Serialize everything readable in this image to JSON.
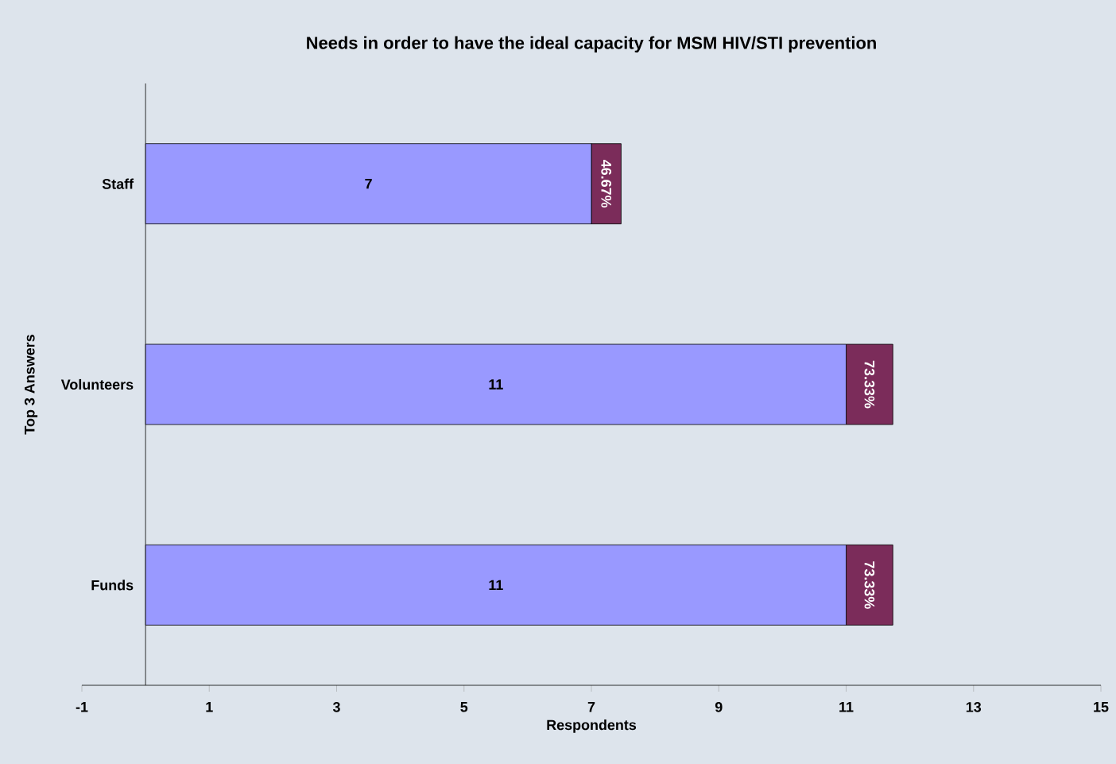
{
  "chart_data": {
    "type": "bar",
    "orientation": "horizontal",
    "stacked": true,
    "title": "Needs in order to have the ideal capacity for MSM HIV/STI prevention",
    "xlabel": "Respondents",
    "ylabel": "Top 3 Answers",
    "categories": [
      "Staff",
      "Volunteers",
      "Funds"
    ],
    "series": [
      {
        "color": "#9999ff",
        "values": [
          7,
          11,
          11
        ],
        "value_labels": [
          "7",
          "11",
          "11"
        ]
      },
      {
        "color": "#7b2c5a",
        "values": [
          0.4667,
          0.7333,
          0.7333
        ],
        "value_labels": [
          "46.67%",
          "73.33%",
          "73.33%"
        ]
      }
    ],
    "xlim": [
      -1,
      15
    ],
    "xticks": [
      -1,
      1,
      3,
      5,
      7,
      9,
      11,
      13,
      15
    ]
  }
}
